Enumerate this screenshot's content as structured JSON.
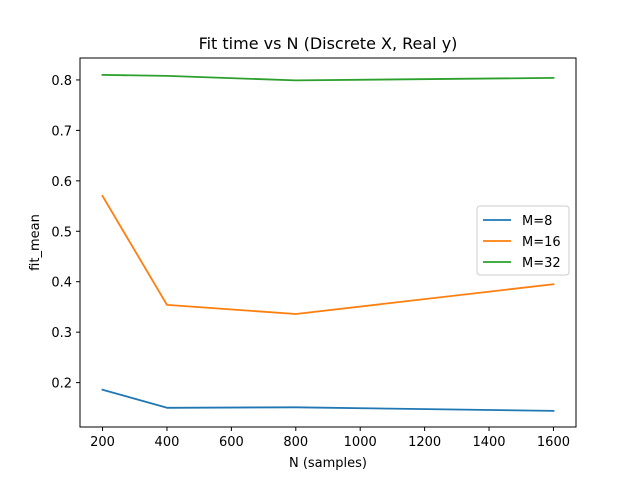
{
  "chart_data": {
    "type": "line",
    "title": "Fit time vs N (Discrete X, Real y)",
    "xlabel": "N (samples)",
    "ylabel": "fit_mean",
    "x": [
      200,
      400,
      800,
      1600
    ],
    "xlim": [
      130,
      1670
    ],
    "ylim": [
      0.112,
      0.8435
    ],
    "xticks": [
      200,
      400,
      600,
      800,
      1000,
      1200,
      1400,
      1600
    ],
    "yticks": [
      0.2,
      0.3,
      0.4,
      0.5,
      0.6,
      0.7,
      0.8
    ],
    "ytick_labels": [
      "0.2",
      "0.3",
      "0.4",
      "0.5",
      "0.6",
      "0.7",
      "0.8"
    ],
    "grid": false,
    "legend": "center-right",
    "series": [
      {
        "name": "M=8",
        "color": "#1f77b4",
        "values": [
          0.186,
          0.15,
          0.151,
          0.144
        ]
      },
      {
        "name": "M=16",
        "color": "#ff7f0e",
        "values": [
          0.57,
          0.354,
          0.336,
          0.395
        ]
      },
      {
        "name": "M=32",
        "color": "#2ca02c",
        "values": [
          0.81,
          0.808,
          0.799,
          0.804
        ]
      }
    ]
  }
}
